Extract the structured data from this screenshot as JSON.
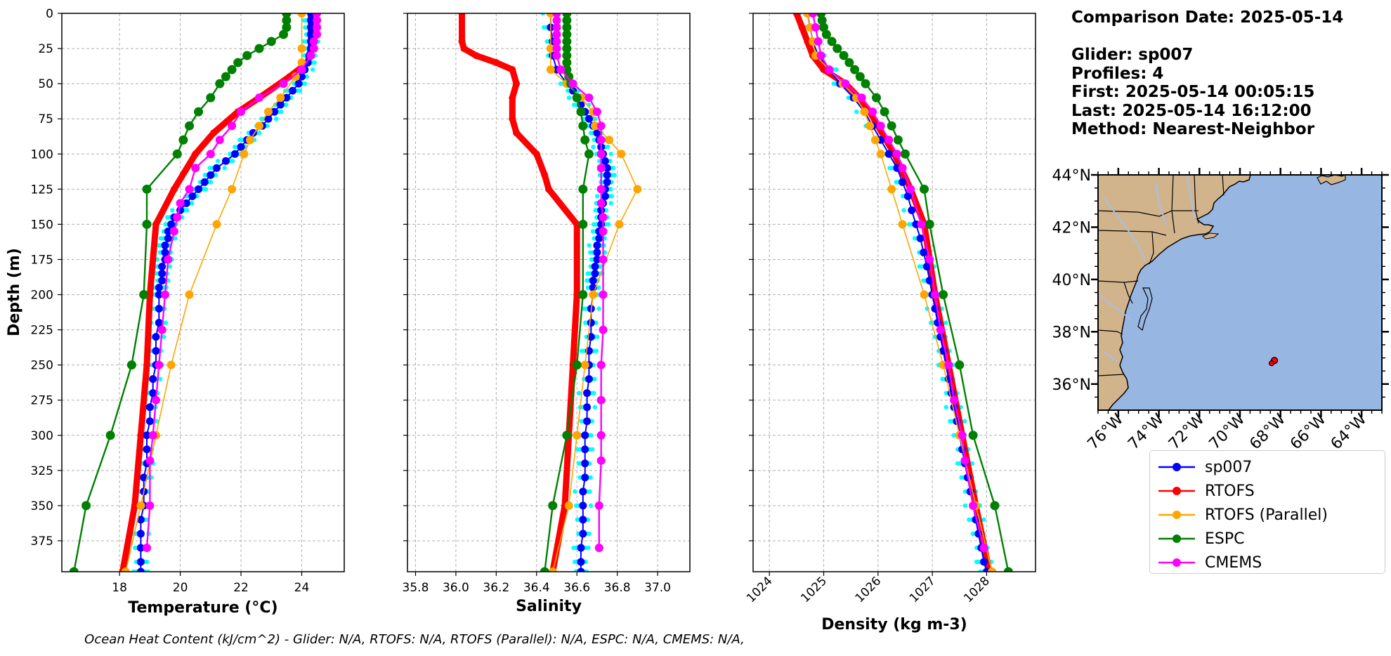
{
  "info": {
    "comparison_date": "Comparison Date: 2025-05-14",
    "glider": "Glider: sp007",
    "profiles": "Profiles: 4",
    "first": "First: 2025-05-14 00:05:15",
    "last": "Last: 2025-05-14 16:12:00",
    "method": "Method: Nearest-Neighbor"
  },
  "footer": "Ocean Heat Content (kJ/cm^2) - Glider: N/A,  RTOFS: N/A,  RTOFS (Parallel): N/A,  ESPC: N/A,  CMEMS: N/A,",
  "colors": {
    "sp007": "#0000ff",
    "RTOFS": "#ff0000",
    "RTOFS (Parallel)": "#ffa500",
    "ESPC": "#008000",
    "CMEMS": "#ff00ff",
    "glider_raw": "#00ffff",
    "land": "#d2b48c",
    "ocean": "#98b6e2",
    "rivers": "#a8bfe6"
  },
  "legend": [
    {
      "label": "sp007",
      "color": "#0000ff"
    },
    {
      "label": "RTOFS",
      "color": "#ff0000"
    },
    {
      "label": "RTOFS (Parallel)",
      "color": "#ffa500"
    },
    {
      "label": "ESPC",
      "color": "#008000"
    },
    {
      "label": "CMEMS",
      "color": "#ff00ff"
    }
  ],
  "chart_data": [
    {
      "type": "line",
      "xlabel": "Temperature (°C)",
      "ylabel": "Depth (m)",
      "xlim": [
        16.1,
        25.4
      ],
      "ylim": [
        397,
        0
      ],
      "xticks": [
        18,
        20,
        22,
        24
      ],
      "yticks": [
        0,
        25,
        50,
        75,
        100,
        125,
        150,
        175,
        200,
        225,
        250,
        275,
        300,
        325,
        350,
        375
      ],
      "grid": true,
      "series": [
        {
          "name": "sp007",
          "depth": [
            0,
            5,
            10,
            15,
            20,
            25,
            30,
            35,
            40,
            45,
            50,
            55,
            60,
            65,
            70,
            75,
            80,
            85,
            90,
            95,
            100,
            105,
            110,
            115,
            120,
            125,
            130,
            135,
            140,
            145,
            150,
            155,
            160,
            165,
            170,
            175,
            180,
            185,
            190,
            195,
            200,
            210,
            220,
            230,
            240,
            250,
            260,
            270,
            280,
            290,
            300,
            310,
            320,
            330,
            340,
            350,
            360,
            370,
            380,
            390,
            397
          ],
          "values": [
            24.3,
            24.3,
            24.3,
            24.3,
            24.3,
            24.3,
            24.25,
            24.2,
            24.1,
            24.0,
            23.9,
            23.7,
            23.5,
            23.3,
            23.1,
            22.9,
            22.7,
            22.4,
            22.2,
            22.0,
            21.8,
            21.5,
            21.2,
            21.0,
            20.8,
            20.6,
            20.4,
            20.2,
            20.0,
            19.8,
            19.7,
            19.6,
            19.6,
            19.5,
            19.5,
            19.5,
            19.4,
            19.4,
            19.4,
            19.3,
            19.3,
            19.3,
            19.3,
            19.2,
            19.2,
            19.2,
            19.1,
            19.1,
            19.0,
            19.0,
            18.9,
            18.9,
            18.9,
            18.8,
            18.8,
            18.8,
            18.7,
            18.7,
            18.7,
            18.7,
            18.7
          ]
        },
        {
          "name": "RTOFS",
          "depth": [
            0,
            25,
            35,
            45,
            60,
            70,
            85,
            100,
            125,
            150,
            200,
            250,
            300,
            350,
            397
          ],
          "values": [
            24.3,
            24.3,
            24.2,
            23.6,
            22.6,
            21.9,
            21.1,
            20.5,
            19.8,
            19.2,
            19.0,
            18.9,
            18.7,
            18.5,
            18.1
          ]
        },
        {
          "name": "RTOFS (Parallel)",
          "depth": [
            0,
            25,
            35,
            45,
            60,
            70,
            80,
            90,
            100,
            125,
            150,
            200,
            250,
            300,
            350,
            397
          ],
          "values": [
            24.0,
            24.0,
            24.0,
            23.8,
            23.3,
            22.9,
            22.6,
            22.3,
            22.1,
            21.7,
            21.2,
            20.3,
            19.7,
            19.2,
            18.7,
            18.2
          ]
        },
        {
          "name": "ESPC",
          "depth": [
            0,
            5,
            10,
            15,
            20,
            25,
            30,
            35,
            40,
            45,
            50,
            60,
            70,
            80,
            90,
            100,
            125,
            150,
            200,
            250,
            300,
            350,
            397
          ],
          "values": [
            23.5,
            23.5,
            23.5,
            23.4,
            23.0,
            22.6,
            22.2,
            21.9,
            21.7,
            21.5,
            21.3,
            21.0,
            20.6,
            20.3,
            20.1,
            19.9,
            18.9,
            18.9,
            18.8,
            18.4,
            17.7,
            16.9,
            16.5
          ]
        },
        {
          "name": "CMEMS",
          "depth": [
            0,
            5,
            10,
            15,
            20,
            25,
            30,
            40,
            50,
            60,
            70,
            80,
            90,
            100,
            110,
            125,
            135,
            145,
            155,
            175,
            200,
            225,
            250,
            275,
            300,
            318,
            350,
            380
          ],
          "values": [
            24.5,
            24.5,
            24.5,
            24.5,
            24.4,
            24.4,
            24.3,
            24.0,
            23.4,
            22.6,
            22.0,
            21.7,
            21.3,
            21.0,
            20.5,
            20.3,
            20.0,
            19.9,
            19.8,
            19.6,
            19.5,
            19.4,
            19.3,
            19.2,
            19.1,
            19.0,
            19.0,
            18.9
          ]
        }
      ]
    },
    {
      "type": "line",
      "xlabel": "Salinity",
      "ylabel": "",
      "xlim": [
        35.76,
        37.16
      ],
      "ylim": [
        397,
        0
      ],
      "xticks": [
        "35.8",
        "36.0",
        "36.2",
        "36.4",
        "36.6",
        "36.8",
        "37.0"
      ],
      "yticks": [
        0,
        25,
        50,
        75,
        100,
        125,
        150,
        175,
        200,
        225,
        250,
        275,
        300,
        325,
        350,
        375
      ],
      "grid": true,
      "series": [
        {
          "name": "sp007",
          "depth": [
            0,
            10,
            20,
            30,
            40,
            50,
            55,
            60,
            65,
            70,
            75,
            80,
            85,
            90,
            95,
            100,
            105,
            110,
            115,
            120,
            125,
            130,
            135,
            140,
            145,
            150,
            155,
            160,
            165,
            170,
            175,
            180,
            185,
            190,
            195,
            200,
            210,
            220,
            230,
            240,
            250,
            260,
            270,
            280,
            290,
            300,
            310,
            320,
            330,
            340,
            350,
            360,
            370,
            380,
            390,
            397
          ],
          "values": [
            36.47,
            36.47,
            36.48,
            36.48,
            36.5,
            36.55,
            36.58,
            36.6,
            36.62,
            36.64,
            36.66,
            36.68,
            36.7,
            36.71,
            36.72,
            36.73,
            36.74,
            36.75,
            36.75,
            36.75,
            36.74,
            36.74,
            36.73,
            36.72,
            36.72,
            36.72,
            36.71,
            36.71,
            36.7,
            36.7,
            36.7,
            36.69,
            36.69,
            36.68,
            36.68,
            36.68,
            36.67,
            36.67,
            36.67,
            36.66,
            36.66,
            36.66,
            36.65,
            36.65,
            36.65,
            36.64,
            36.64,
            36.64,
            36.64,
            36.63,
            36.63,
            36.63,
            36.63,
            36.62,
            36.62,
            36.62
          ]
        },
        {
          "name": "RTOFS",
          "depth": [
            0,
            20,
            25,
            30,
            35,
            40,
            50,
            60,
            75,
            85,
            100,
            115,
            125,
            150,
            200,
            250,
            300,
            350,
            397
          ],
          "values": [
            36.03,
            36.03,
            36.04,
            36.1,
            36.2,
            36.28,
            36.3,
            36.28,
            36.28,
            36.3,
            36.4,
            36.44,
            36.46,
            36.6,
            36.6,
            36.58,
            36.56,
            36.54,
            36.48
          ]
        },
        {
          "name": "RTOFS (Parallel)",
          "depth": [
            0,
            25,
            40,
            50,
            60,
            70,
            80,
            90,
            100,
            125,
            150,
            200,
            250,
            300,
            350,
            397
          ],
          "values": [
            36.47,
            36.47,
            36.47,
            36.55,
            36.62,
            36.68,
            36.69,
            36.76,
            36.82,
            36.9,
            36.81,
            36.68,
            36.64,
            36.6,
            36.56,
            36.48
          ]
        },
        {
          "name": "ESPC",
          "depth": [
            0,
            5,
            10,
            15,
            20,
            25,
            30,
            35,
            40,
            45,
            50,
            60,
            70,
            80,
            90,
            100,
            125,
            150,
            200,
            250,
            300,
            350,
            397
          ],
          "values": [
            36.55,
            36.55,
            36.55,
            36.55,
            36.55,
            36.55,
            36.55,
            36.55,
            36.55,
            36.56,
            36.57,
            36.6,
            36.62,
            36.63,
            36.64,
            36.66,
            36.63,
            36.63,
            36.63,
            36.6,
            36.55,
            36.48,
            36.44
          ]
        },
        {
          "name": "CMEMS",
          "depth": [
            0,
            5,
            10,
            15,
            20,
            25,
            30,
            40,
            50,
            60,
            70,
            80,
            90,
            100,
            110,
            125,
            135,
            145,
            155,
            175,
            200,
            225,
            250,
            275,
            300,
            318,
            350,
            380
          ],
          "values": [
            36.5,
            36.5,
            36.5,
            36.5,
            36.5,
            36.5,
            36.5,
            36.52,
            36.58,
            36.66,
            36.7,
            36.72,
            36.72,
            36.72,
            36.72,
            36.72,
            36.72,
            36.73,
            36.73,
            36.73,
            36.73,
            36.73,
            36.72,
            36.72,
            36.72,
            36.72,
            36.71,
            36.71
          ]
        }
      ]
    },
    {
      "type": "line",
      "xlabel": "Density (kg m-3)",
      "ylabel": "",
      "xlim": [
        1023.7,
        1028.9
      ],
      "ylim": [
        397,
        0
      ],
      "xticks": [
        "1024",
        "1025",
        "1026",
        "1027",
        "1028"
      ],
      "yticks": [
        0,
        25,
        50,
        75,
        100,
        125,
        150,
        175,
        200,
        225,
        250,
        275,
        300,
        325,
        350,
        375
      ],
      "grid": true,
      "series": [
        {
          "name": "sp007",
          "depth": [
            0,
            10,
            20,
            30,
            40,
            50,
            60,
            70,
            80,
            90,
            100,
            110,
            120,
            130,
            140,
            150,
            160,
            170,
            180,
            190,
            200,
            210,
            220,
            230,
            240,
            250,
            260,
            270,
            280,
            290,
            300,
            310,
            320,
            330,
            340,
            350,
            360,
            370,
            380,
            390,
            397
          ],
          "values": [
            1024.7,
            1024.75,
            1024.8,
            1024.9,
            1025.1,
            1025.3,
            1025.55,
            1025.75,
            1025.9,
            1026.05,
            1026.2,
            1026.35,
            1026.45,
            1026.55,
            1026.62,
            1026.7,
            1026.78,
            1026.84,
            1026.9,
            1026.95,
            1027.0,
            1027.05,
            1027.1,
            1027.15,
            1027.2,
            1027.25,
            1027.3,
            1027.35,
            1027.4,
            1027.45,
            1027.5,
            1027.55,
            1027.6,
            1027.65,
            1027.7,
            1027.75,
            1027.8,
            1027.85,
            1027.9,
            1027.95,
            1028.0
          ]
        },
        {
          "name": "RTOFS",
          "depth": [
            0,
            10,
            20,
            30,
            40,
            50,
            60,
            70,
            80,
            90,
            100,
            125,
            150,
            200,
            250,
            300,
            350,
            397
          ],
          "values": [
            1024.5,
            1024.6,
            1024.7,
            1024.8,
            1025.0,
            1025.4,
            1025.65,
            1025.85,
            1026.0,
            1026.15,
            1026.3,
            1026.6,
            1026.85,
            1027.05,
            1027.3,
            1027.55,
            1027.8,
            1028.05
          ]
        },
        {
          "name": "RTOFS (Parallel)",
          "depth": [
            0,
            10,
            20,
            30,
            40,
            50,
            60,
            70,
            80,
            90,
            100,
            125,
            150,
            200,
            250,
            300,
            350,
            397
          ],
          "values": [
            1024.7,
            1024.75,
            1024.8,
            1024.85,
            1025.1,
            1025.35,
            1025.6,
            1025.75,
            1025.85,
            1025.95,
            1026.05,
            1026.25,
            1026.45,
            1026.85,
            1027.2,
            1027.5,
            1027.8,
            1028.1
          ]
        },
        {
          "name": "ESPC",
          "depth": [
            0,
            5,
            10,
            15,
            20,
            25,
            30,
            35,
            40,
            45,
            50,
            60,
            70,
            80,
            90,
            100,
            125,
            150,
            200,
            250,
            300,
            350,
            397
          ],
          "values": [
            1024.95,
            1024.97,
            1025.0,
            1025.05,
            1025.15,
            1025.25,
            1025.37,
            1025.47,
            1025.57,
            1025.67,
            1025.77,
            1025.97,
            1026.12,
            1026.25,
            1026.37,
            1026.5,
            1026.85,
            1026.95,
            1027.2,
            1027.5,
            1027.75,
            1028.15,
            1028.4
          ]
        },
        {
          "name": "CMEMS",
          "depth": [
            0,
            10,
            20,
            30,
            40,
            50,
            60,
            70,
            80,
            90,
            100,
            110,
            125,
            150,
            175,
            200,
            225,
            250,
            275,
            300,
            318,
            350,
            380
          ],
          "values": [
            1024.8,
            1024.85,
            1024.9,
            1024.95,
            1025.1,
            1025.4,
            1025.7,
            1025.9,
            1026.05,
            1026.2,
            1026.35,
            1026.45,
            1026.6,
            1026.8,
            1026.95,
            1027.05,
            1027.15,
            1027.3,
            1027.4,
            1027.55,
            1027.6,
            1027.75,
            1027.95
          ]
        }
      ]
    }
  ],
  "map": {
    "lat_labels": [
      "44°N",
      "42°N",
      "40°N",
      "38°N",
      "36°N"
    ],
    "lon_labels": [
      "76°W",
      "74°W",
      "72°W",
      "70°W",
      "68°W",
      "66°W",
      "64°W"
    ],
    "lat_values": [
      44,
      42,
      40,
      38,
      36
    ],
    "lon_values": [
      -76,
      -74,
      -72,
      -70,
      -68,
      -66,
      -64
    ],
    "extent_lon": [
      -77,
      -63
    ],
    "extent_lat": [
      35,
      44
    ],
    "glider_position": {
      "lon": -68.3,
      "lat": 36.9
    }
  }
}
